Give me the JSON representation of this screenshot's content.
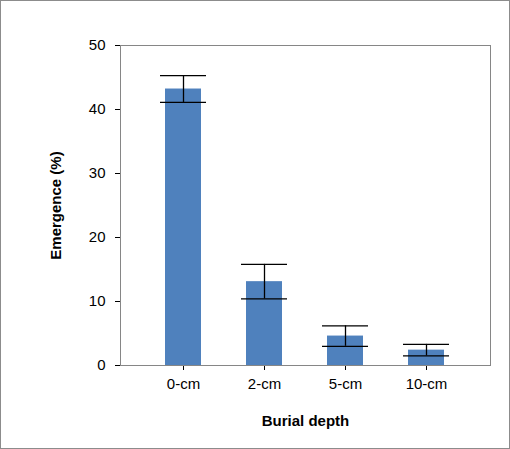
{
  "chart_data": {
    "type": "bar",
    "categories": [
      "0-cm",
      "2-cm",
      "5-cm",
      "10-cm"
    ],
    "values": [
      43.2,
      13.1,
      4.6,
      2.4
    ],
    "errors": [
      2.1,
      2.7,
      1.6,
      0.9
    ],
    "color": "#4f81bd",
    "xlabel": "Burial depth",
    "ylabel": "Emergence (%)",
    "ylim": [
      0,
      50
    ],
    "yticks": [
      0,
      10,
      20,
      30,
      40,
      50
    ],
    "grid": false
  }
}
